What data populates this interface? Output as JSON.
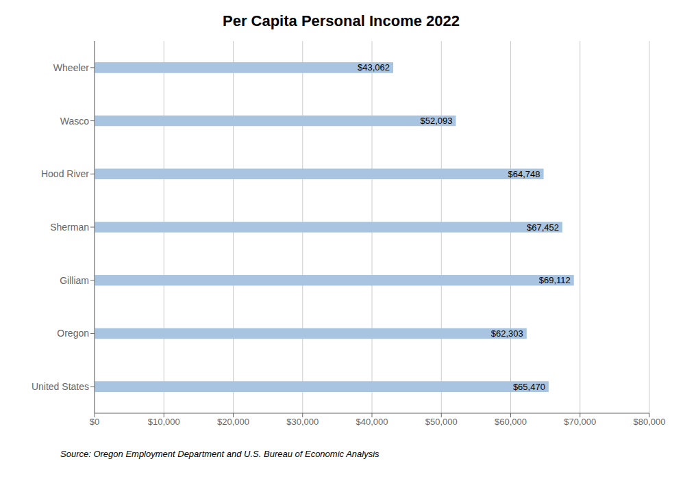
{
  "chart_data": {
    "type": "bar",
    "orientation": "horizontal",
    "title": "Per Capita Personal Income 2022",
    "categories": [
      "United States",
      "Oregon",
      "Gilliam",
      "Sherman",
      "Hood River",
      "Wasco",
      "Wheeler"
    ],
    "values": [
      65470,
      62303,
      69112,
      67452,
      64748,
      52093,
      43062
    ],
    "value_labels": [
      "$65,470",
      "$62,303",
      "$69,112",
      "$67,452",
      "$64,748",
      "$52,093",
      "$43,062"
    ],
    "data_labels": true,
    "color": "#a8c4e0",
    "xlim": [
      0,
      80000
    ],
    "xticks": [
      {
        "value": 0,
        "label": "$0"
      },
      {
        "value": 10000,
        "label": "$10,000"
      },
      {
        "value": 20000,
        "label": "$20,000"
      },
      {
        "value": 30000,
        "label": "$30,000"
      },
      {
        "value": 40000,
        "label": "$40,000"
      },
      {
        "value": 50000,
        "label": "$50,000"
      },
      {
        "value": 60000,
        "label": "$60,000"
      },
      {
        "value": 70000,
        "label": "$70,000"
      },
      {
        "value": 80000,
        "label": "$80,000"
      }
    ],
    "grid": true,
    "annotation": "Source: Oregon Employment Department and U.S. Bureau of Economic Analysis"
  }
}
